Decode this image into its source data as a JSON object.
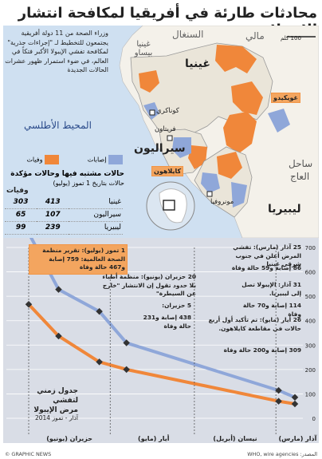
{
  "title": "محادثات طارئة في أفريقيا لمكافحة انتشار الإيبولا",
  "intro": "وزراء الصحة من 11 دولة أفريقية يجتمعون للتخطيط لـ \"إجراءات جذرية\" لمكافحة تفشي الإيبولا الأكبر فتكاً في العالم، في ضوء استمرار ظهور عشرات الحالات الجديدة",
  "legend": {
    "cases_label": "إصابات",
    "deaths_label": "وفيات",
    "cases_color": "#8fa7d9",
    "deaths_color": "#f0873a"
  },
  "table": {
    "heading": "حالات مشتبه فيها وحالات مؤكدة",
    "subheading": "حالات بتاريخ 1 تموز (يوليو)",
    "deaths_col": "وفيات",
    "rows": [
      {
        "country": "غينيا",
        "cases": "413",
        "deaths": "303"
      },
      {
        "country": "سيراليون",
        "cases": "107",
        "deaths": "65"
      },
      {
        "country": "ليبيريا",
        "cases": "239",
        "deaths": "99"
      }
    ]
  },
  "map_labels": {
    "scale": "100 كلم",
    "mali": "مالي",
    "senegal": "السنغال",
    "guinea_bissau": "غينيا بيساو",
    "guinea": "غينيا",
    "conakry": "كوناكري",
    "freetown": "فريتاون",
    "sierra_leone": "سيراليون",
    "atlantic": "المحيط الأطلسي",
    "gueckedou": "غويكيدو",
    "kailahun": "كايلاهون",
    "monrovia": "مونروفيا",
    "liberia": "ليبيريا",
    "ivory_coast_1": "ساحل",
    "ivory_coast_2": "العاج"
  },
  "timeline": {
    "title_1": "جدول زمني لتفشي",
    "title_2": "مرض الإيبولا",
    "subtitle": "آذار - تموز 2014",
    "months": [
      "آذار (مارس)",
      "نيسان (أبريل)",
      "أيار (مايو)",
      "حزيران (يونيو)"
    ],
    "y_ticks": [
      "0",
      "100",
      "200",
      "300",
      "400",
      "500",
      "600",
      "700"
    ],
    "notes": {
      "n1": "25 آذار (مارس): تفشي المرض أعلن في جنوب شرقي غينيا",
      "n1b": "86 إصابة و59 حالة وفاة",
      "n2": "31 آذار: الإيبولا تصل إلى ليبيريا.",
      "n2b": "114 إصابة و70 حالة وفاة",
      "n3": "26 أيار (مايو): تم تأكيد أول أربع حالات في مقاطعة كايلاهون.",
      "n3b": "309 إصابة و200 حالة وفاة",
      "n4": "5 حزيران:",
      "n4b": "438 إصابة و231 حالة وفاة",
      "n5": "20 حزيران (يونيو): منظمة أطباء بلا حدود تقول إن الانتشار \"خارج عن السيطرة\"",
      "n6": "1 تموز (يوليو): تقرير منظمة الصحة العالمية: 759 إصابة و467 حالة وفاة"
    }
  },
  "chart_data": {
    "type": "line",
    "x": [
      "2014-03-25",
      "2014-03-31",
      "2014-05-26",
      "2014-06-05",
      "2014-06-20",
      "2014-07-01"
    ],
    "series": [
      {
        "name": "إصابات",
        "values": [
          86,
          114,
          309,
          438,
          528,
          759
        ]
      },
      {
        "name": "وفيات",
        "values": [
          59,
          70,
          200,
          231,
          337,
          467
        ]
      }
    ],
    "ylim": [
      0,
      700
    ],
    "grid": true
  },
  "footer": {
    "credit": "© GRAPHIC NEWS",
    "source": "المصدر: WHO, wire agencies"
  }
}
